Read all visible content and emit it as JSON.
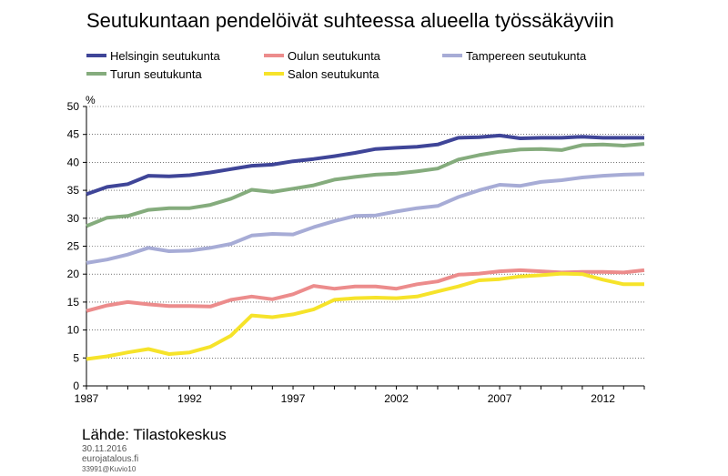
{
  "chart_data": {
    "type": "line",
    "title": "Seutukuntaan pendelöivät suhteessa alueella työssäkäyviin",
    "ylabel": "%",
    "ylim": [
      0,
      50
    ],
    "yticks": [
      0,
      5,
      10,
      15,
      20,
      25,
      30,
      35,
      40,
      45,
      50
    ],
    "xlim": [
      1987,
      2014
    ],
    "xticks": [
      1987,
      1992,
      1997,
      2002,
      2007,
      2012
    ],
    "grid": "horizontal",
    "legend_position": "top",
    "x": [
      1987,
      1988,
      1989,
      1990,
      1991,
      1992,
      1993,
      1994,
      1995,
      1996,
      1997,
      1998,
      1999,
      2000,
      2001,
      2002,
      2003,
      2004,
      2005,
      2006,
      2007,
      2008,
      2009,
      2010,
      2011,
      2012,
      2013,
      2014
    ],
    "series": [
      {
        "name": "Helsingin seutukunta",
        "color": "#3f4598",
        "values": [
          34.3,
          35.6,
          36.1,
          37.6,
          37.5,
          37.7,
          38.2,
          38.8,
          39.4,
          39.6,
          40.2,
          40.6,
          41.1,
          41.7,
          42.4,
          42.6,
          42.8,
          43.2,
          44.4,
          44.5,
          44.8,
          44.3,
          44.4,
          44.4,
          44.6,
          44.4,
          44.4,
          44.4
        ]
      },
      {
        "name": "Oulun seutukunta",
        "color": "#ec8c8c",
        "values": [
          13.4,
          14.4,
          15.0,
          14.6,
          14.3,
          14.3,
          14.2,
          15.4,
          16.0,
          15.5,
          16.4,
          17.9,
          17.4,
          17.8,
          17.8,
          17.4,
          18.2,
          18.7,
          19.9,
          20.1,
          20.5,
          20.7,
          20.5,
          20.3,
          20.4,
          20.4,
          20.3,
          20.7
        ]
      },
      {
        "name": "Tampereen seutukunta",
        "color": "#a7acd6",
        "values": [
          22.0,
          22.6,
          23.5,
          24.7,
          24.1,
          24.2,
          24.7,
          25.4,
          26.9,
          27.2,
          27.1,
          28.4,
          29.5,
          30.4,
          30.5,
          31.2,
          31.8,
          32.2,
          33.8,
          35.0,
          36.0,
          35.8,
          36.5,
          36.8,
          37.3,
          37.6,
          37.8,
          37.9
        ]
      },
      {
        "name": "Turun seutukunta",
        "color": "#85ac7d",
        "values": [
          28.6,
          30.1,
          30.4,
          31.5,
          31.8,
          31.8,
          32.4,
          33.5,
          35.1,
          34.7,
          35.3,
          35.9,
          36.9,
          37.4,
          37.8,
          38.0,
          38.4,
          38.9,
          40.5,
          41.3,
          41.9,
          42.3,
          42.4,
          42.2,
          43.1,
          43.2,
          43.0,
          43.3
        ]
      },
      {
        "name": "Salon seutukunta",
        "color": "#f6e32a",
        "values": [
          4.8,
          5.3,
          6.0,
          6.6,
          5.7,
          6.0,
          7.0,
          9.0,
          12.6,
          12.3,
          12.8,
          13.7,
          15.4,
          15.7,
          15.8,
          15.7,
          16.0,
          16.9,
          17.8,
          18.9,
          19.1,
          19.6,
          19.8,
          20.1,
          20.0,
          19.0,
          18.2,
          18.2
        ]
      }
    ]
  },
  "footer": {
    "source": "Lähde: Tilastokeskus",
    "date": "30.11.2016",
    "site": "eurojatalous.fi",
    "code": "33991@Kuvio10"
  }
}
